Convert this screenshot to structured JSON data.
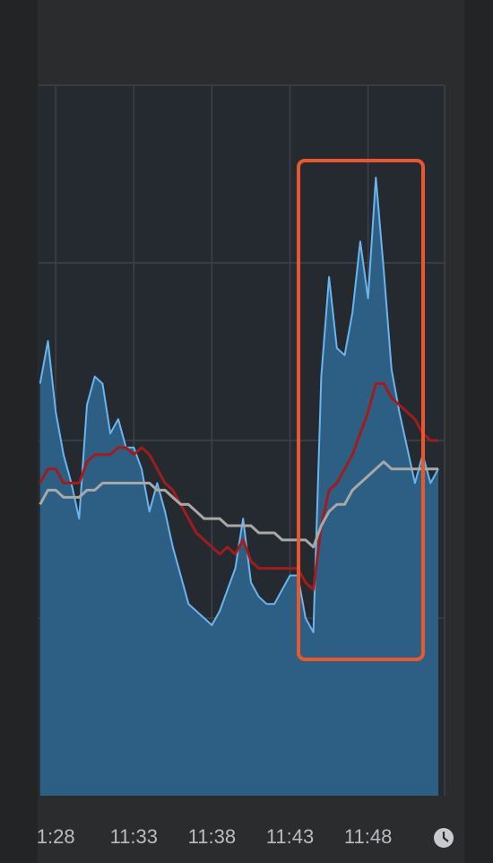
{
  "chart_data": {
    "type": "area",
    "x": [
      27.0,
      27.5,
      28.0,
      28.5,
      29.0,
      29.5,
      30.0,
      30.5,
      31.0,
      31.5,
      32.0,
      32.5,
      33.0,
      33.5,
      34.0,
      34.5,
      35.0,
      35.5,
      36.0,
      36.5,
      37.0,
      37.5,
      38.0,
      38.5,
      39.0,
      39.5,
      40.0,
      40.5,
      41.0,
      41.5,
      42.0,
      42.5,
      43.0,
      43.5,
      44.0,
      44.5,
      45.0,
      45.5,
      46.0,
      46.5,
      47.0,
      47.5,
      48.0,
      48.5,
      49.0,
      49.5,
      50.0,
      50.5,
      51.0,
      51.5,
      52.0,
      52.5
    ],
    "series": [
      {
        "type": "area",
        "color": "#6cb4ee",
        "fill": "#2d5f85",
        "values": [
          58,
          64,
          54,
          48,
          44,
          39,
          55,
          59,
          58,
          51,
          53,
          49,
          49,
          46,
          40,
          44,
          40,
          35,
          31,
          27,
          26,
          25,
          24,
          26,
          29,
          32,
          39,
          30,
          28,
          27,
          27,
          29,
          31,
          31,
          25,
          23,
          59,
          73,
          63,
          62,
          68,
          78,
          70,
          87,
          74,
          60,
          54,
          49,
          44,
          48,
          44,
          46
        ]
      },
      {
        "type": "line",
        "color": "#a11c1c",
        "values": [
          44,
          46,
          46,
          44,
          44,
          44,
          47,
          48,
          48,
          48,
          49,
          49,
          48,
          49,
          48,
          46,
          44,
          43,
          41,
          39,
          37,
          36,
          35,
          34,
          35,
          34,
          36,
          33,
          32,
          32,
          32,
          32,
          32,
          32,
          30,
          29,
          38,
          43,
          44,
          46,
          48,
          51,
          54,
          58,
          58,
          56,
          55,
          54,
          53,
          51,
          50,
          50
        ]
      },
      {
        "type": "line",
        "color": "#a8a8a8",
        "values": [
          41,
          43,
          43,
          42,
          42,
          42,
          43,
          43,
          44,
          44,
          44,
          44,
          44,
          44,
          44,
          43,
          43,
          42,
          41,
          41,
          40,
          39,
          39,
          39,
          38,
          38,
          38,
          38,
          37,
          37,
          37,
          36,
          36,
          36,
          36,
          35,
          38,
          40,
          41,
          41,
          43,
          44,
          45,
          46,
          47,
          46,
          46,
          46,
          46,
          46,
          46,
          46
        ]
      }
    ],
    "xlim": [
      26.9,
      52.9
    ],
    "xticks": [
      {
        "value": 28,
        "label": "1:28"
      },
      {
        "value": 33,
        "label": "11:33"
      },
      {
        "value": 38,
        "label": "11:38"
      },
      {
        "value": 43,
        "label": "11:43"
      },
      {
        "value": 48,
        "label": "11:48"
      }
    ],
    "ylim": [
      0,
      100
    ],
    "yticks": [
      25,
      50,
      75,
      100
    ],
    "grid": true
  }
}
